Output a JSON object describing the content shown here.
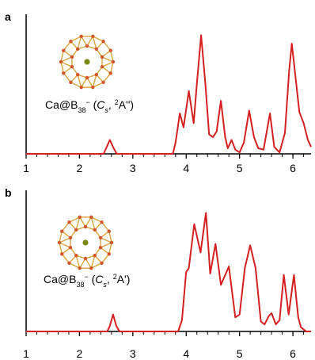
{
  "chart_data": [
    {
      "type": "line",
      "panel_label": "a",
      "annotation_parts": [
        "Ca@B",
        "38",
        "−",
        " (",
        "C",
        "s",
        ", ",
        "2",
        "A'')"
      ],
      "x": [
        1.0,
        2.45,
        2.5,
        2.57,
        2.64,
        2.7,
        3.75,
        3.8,
        3.88,
        3.95,
        4.05,
        4.14,
        4.2,
        4.28,
        4.36,
        4.43,
        4.5,
        4.57,
        4.65,
        4.73,
        4.78,
        4.85,
        4.92,
        5.0,
        5.08,
        5.18,
        5.27,
        5.35,
        5.45,
        5.57,
        5.65,
        5.75,
        5.85,
        5.93,
        5.98,
        6.05,
        6.12,
        6.2,
        6.28,
        6.34
      ],
      "values": [
        0,
        0,
        0.04,
        0.1,
        0.04,
        0,
        0,
        0.08,
        0.29,
        0.19,
        0.45,
        0.22,
        0.5,
        0.85,
        0.5,
        0.14,
        0.12,
        0.16,
        0.38,
        0.12,
        0.04,
        0.1,
        0.03,
        0.01,
        0.08,
        0.31,
        0.12,
        0.04,
        0.03,
        0.29,
        0.05,
        0.01,
        0.15,
        0.6,
        0.79,
        0.55,
        0.3,
        0.22,
        0.1,
        0.05
      ],
      "color": "#d42020",
      "xlim": [
        1,
        6.34
      ],
      "ylim": [
        0,
        1
      ],
      "xticks": [
        1,
        2,
        3,
        4,
        5,
        6
      ],
      "xminorticks": [
        1.2,
        1.4,
        1.6,
        1.8,
        2.2,
        2.4,
        2.6,
        2.8,
        3.2,
        3.4,
        3.6,
        3.8,
        4.2,
        4.4,
        4.6,
        4.8,
        5.2,
        5.4,
        5.6,
        5.8,
        6.2
      ]
    },
    {
      "type": "line",
      "panel_label": "b",
      "annotation_parts": [
        "Ca@B",
        "38",
        "−",
        " (",
        "C",
        "s",
        ", ",
        "2",
        "A')"
      ],
      "x": [
        1.0,
        2.52,
        2.57,
        2.63,
        2.69,
        2.75,
        3.85,
        3.92,
        4.0,
        4.05,
        4.15,
        4.27,
        4.37,
        4.45,
        4.55,
        4.65,
        4.8,
        4.92,
        5.0,
        5.1,
        5.2,
        5.3,
        5.4,
        5.47,
        5.55,
        5.6,
        5.68,
        5.75,
        5.83,
        5.92,
        6.02,
        6.1,
        6.15,
        6.25,
        6.34
      ],
      "values": [
        0,
        0,
        0.04,
        0.12,
        0.04,
        0,
        0,
        0.08,
        0.42,
        0.45,
        0.76,
        0.56,
        0.84,
        0.41,
        0.62,
        0.33,
        0.46,
        0.1,
        0.12,
        0.45,
        0.61,
        0.45,
        0.07,
        0.05,
        0.11,
        0.13,
        0.05,
        0.08,
        0.4,
        0.12,
        0.4,
        0.1,
        0.03,
        0,
        0
      ],
      "color": "#d42020",
      "xlim": [
        1,
        6.34
      ],
      "ylim": [
        0,
        1
      ],
      "xticks": [
        1,
        2,
        3,
        4,
        5,
        6
      ],
      "xminorticks": [
        1.2,
        1.4,
        1.6,
        1.8,
        2.2,
        2.4,
        2.6,
        2.8,
        3.2,
        3.4,
        3.6,
        3.8,
        4.2,
        4.4,
        4.6,
        4.8,
        5.2,
        5.4,
        5.6,
        5.8,
        6.2
      ]
    }
  ]
}
